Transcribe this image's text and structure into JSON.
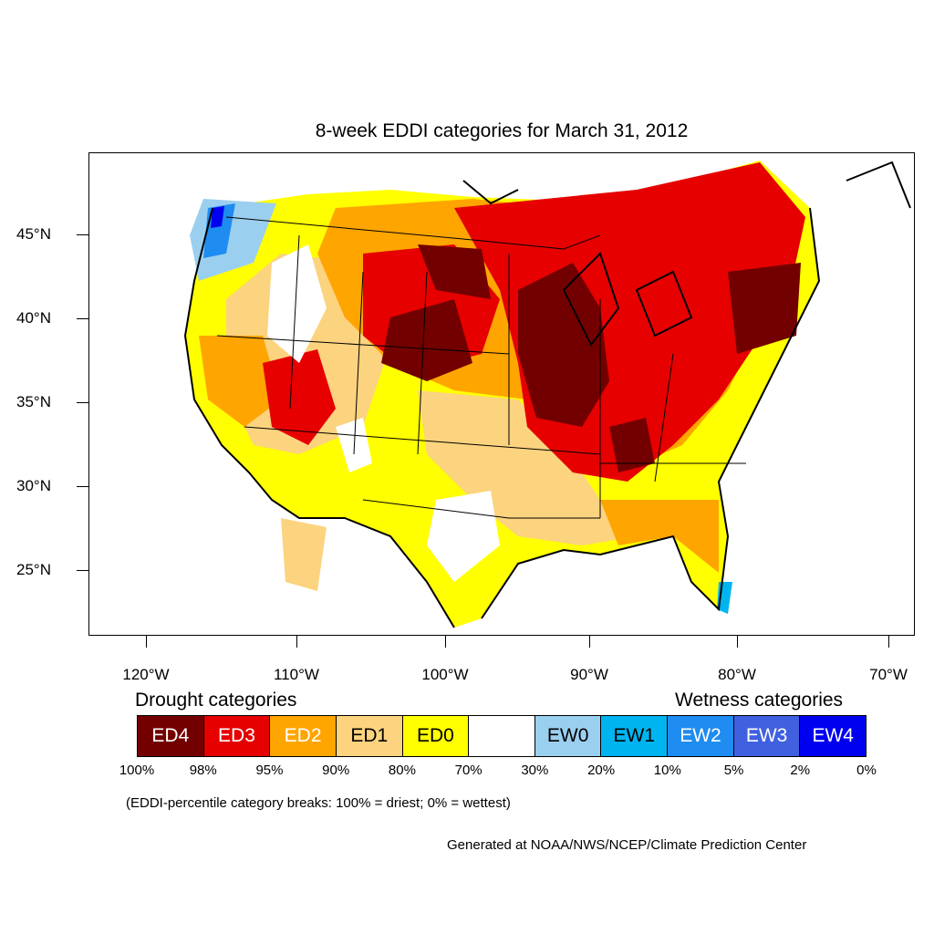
{
  "title": "8-week EDDI categories for March 31, 2012",
  "latitude_labels": [
    "45°N",
    "40°N",
    "35°N",
    "30°N",
    "25°N"
  ],
  "longitude_labels": [
    "120°W",
    "110°W",
    "100°W",
    "90°W",
    "80°W",
    "70°W"
  ],
  "legend": {
    "drought_heading": "Drought categories",
    "wetness_heading": "Wetness categories",
    "categories": [
      {
        "label": "ED4",
        "color": "#730000",
        "text_color": "#ffffff"
      },
      {
        "label": "ED3",
        "color": "#e60000",
        "text_color": "#ffffff"
      },
      {
        "label": "ED2",
        "color": "#ffa500",
        "text_color": "#ffffff"
      },
      {
        "label": "ED1",
        "color": "#fcd37f",
        "text_color": "#000000"
      },
      {
        "label": "ED0",
        "color": "#ffff00",
        "text_color": "#000000"
      },
      {
        "label": "",
        "color": "#ffffff",
        "text_color": "#000000"
      },
      {
        "label": "EW0",
        "color": "#9bcfef",
        "text_color": "#000000"
      },
      {
        "label": "EW1",
        "color": "#00b4f0",
        "text_color": "#000000"
      },
      {
        "label": "EW2",
        "color": "#1e8cf0",
        "text_color": "#ffffff"
      },
      {
        "label": "EW3",
        "color": "#4060e0",
        "text_color": "#ffffff"
      },
      {
        "label": "EW4",
        "color": "#0000f0",
        "text_color": "#ffffff"
      }
    ],
    "breaks": [
      "100%",
      "98%",
      "95%",
      "90%",
      "80%",
      "70%",
      "30%",
      "20%",
      "10%",
      "5%",
      "2%",
      "0%"
    ]
  },
  "note": "(EDDI-percentile category breaks: 100% = driest; 0% = wettest)",
  "credit": "Generated at NOAA/NWS/NCEP/Climate Prediction Center"
}
